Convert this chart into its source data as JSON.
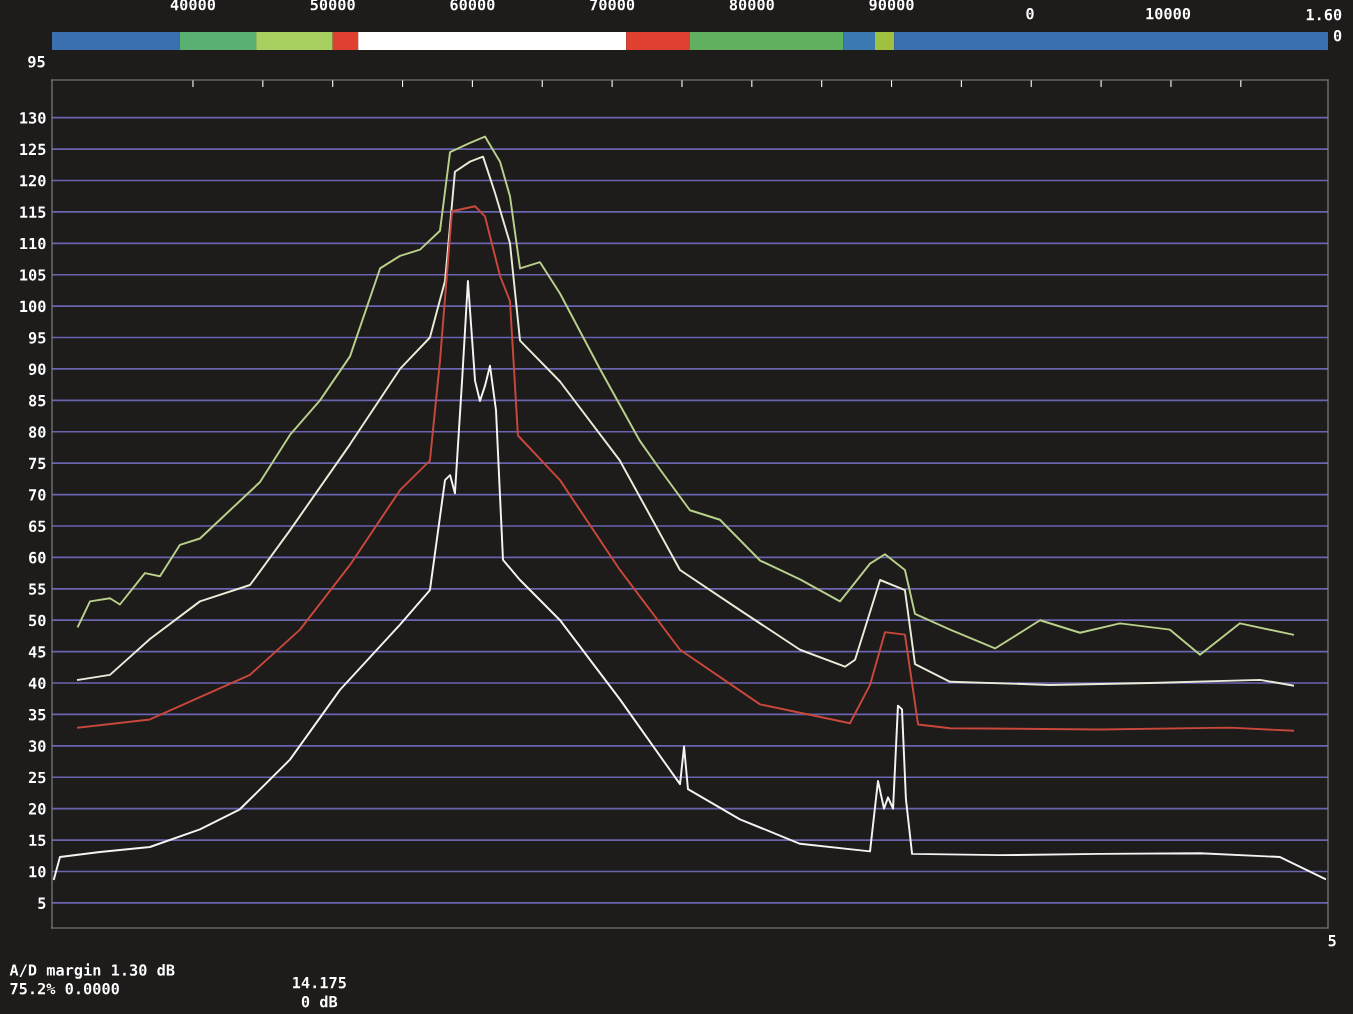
{
  "chart_data": {
    "type": "line",
    "xlim": [
      29910,
      121240
    ],
    "ylim": [
      1,
      136
    ],
    "xticks": [
      40000,
      {
        "value": 45000,
        "label": null
      },
      50000,
      {
        "value": 55000,
        "label": null
      },
      60000,
      {
        "value": 65000,
        "label": null
      },
      70000,
      {
        "value": 75000,
        "label": null
      },
      80000,
      {
        "value": 85000,
        "label": null
      },
      90000,
      {
        "value": 95000,
        "label": null
      },
      {
        "value": 100000,
        "label": null
      },
      {
        "value": 105000,
        "label": null
      },
      {
        "value": 110000,
        "label": null
      },
      {
        "value": 115000,
        "label": null
      }
    ],
    "yticks": [
      5,
      10,
      15,
      20,
      25,
      30,
      35,
      40,
      45,
      50,
      55,
      60,
      65,
      70,
      75,
      80,
      85,
      90,
      95,
      100,
      105,
      110,
      115,
      120,
      125,
      130
    ],
    "grid": "y",
    "marker": "none",
    "line_style": "solid",
    "annotations": [
      "95",
      "1.60",
      "0",
      "A/D margin 1.30 dB",
      "75.2% 0.0000",
      "14.175",
      "0 dB",
      "5",
      "0",
      "10000"
    ],
    "series": [
      {
        "color": "#b8d08a",
        "x": [
          31770,
          32630,
          34060,
          34770,
          36560,
          37640,
          39070,
          40500,
          41930,
          44800,
          46940,
          49090,
          51240,
          53390,
          54820,
          56250,
          57680,
          58400,
          59830,
          60900,
          61980,
          62690,
          63410,
          64840,
          66270,
          69130,
          72000,
          73430,
          75570,
          77720,
          80590,
          83450,
          86310,
          87030,
          88460,
          89530,
          90960,
          91680,
          94190,
          97410,
          100630,
          103490,
          106350,
          109930,
          112080,
          114940,
          118740
        ],
        "values": [
          49,
          53,
          53.5,
          52.5,
          57.5,
          57,
          62,
          63,
          66,
          72,
          79.5,
          85,
          92,
          106,
          108,
          109,
          112,
          124.5,
          126,
          127,
          123,
          117.5,
          106,
          107,
          102,
          90,
          78.5,
          74,
          67.5,
          66,
          59.5,
          56.5,
          53,
          55,
          59,
          60.5,
          58,
          51,
          48.5,
          45.5,
          50,
          48,
          49.5,
          48.5,
          44.5,
          49.5,
          47.7
        ]
      },
      {
        "color": "#e8ecd8",
        "x": [
          31770,
          34060,
          36920,
          40500,
          44080,
          46940,
          51240,
          54820,
          56960,
          58040,
          58750,
          59830,
          60760,
          61620,
          62690,
          63410,
          66270,
          70560,
          74860,
          79150,
          83450,
          86670,
          87390,
          89180,
          90960,
          91680,
          94190,
          101340,
          108500,
          116370,
          118740
        ],
        "values": [
          40.5,
          41.3,
          47,
          53,
          55.6,
          64.3,
          78,
          90,
          95,
          104,
          121.4,
          123,
          123.8,
          118,
          110,
          94.5,
          88,
          75.4,
          58,
          51.6,
          45.3,
          42.6,
          43.7,
          56.4,
          54.8,
          43,
          40.2,
          39.7,
          40,
          40.5,
          39.6
        ]
      },
      {
        "color": "#c8483c",
        "x": [
          31770,
          36920,
          44080,
          47660,
          51240,
          54820,
          56960,
          57680,
          58540,
          60190,
          60900,
          61980,
          62690,
          63260,
          66270,
          70560,
          74860,
          80590,
          87030,
          88460,
          89530,
          90960,
          91900,
          94190,
          104920,
          114230,
          118740
        ],
        "values": [
          32.9,
          34.2,
          41.3,
          48.5,
          58.8,
          70.7,
          75.4,
          91.3,
          115.1,
          115.9,
          114.3,
          104.8,
          100.8,
          79.4,
          72.3,
          58,
          45.3,
          36.6,
          33.6,
          39.7,
          48.1,
          47.7,
          33.4,
          32.8,
          32.6,
          32.9,
          32.4
        ]
      },
      {
        "color": "#f4f4f4",
        "x": [
          30050,
          30480,
          33340,
          36920,
          40500,
          43360,
          46940,
          50520,
          54820,
          56960,
          58040,
          58400,
          58750,
          59260,
          59680,
          60190,
          60540,
          60900,
          61260,
          61690,
          62190,
          63410,
          66270,
          70560,
          74860,
          75150,
          75430,
          79150,
          83450,
          88460,
          89030,
          89460,
          89750,
          90110,
          90460,
          90750,
          91030,
          91470,
          97760,
          104920,
          112080,
          117810,
          121030
        ],
        "values": [
          8.8,
          12.3,
          13.1,
          13.9,
          16.7,
          19.9,
          27.8,
          38.9,
          49.3,
          54.8,
          72.3,
          73.1,
          70.2,
          88.1,
          104,
          88.1,
          84.9,
          87.3,
          90.5,
          83.4,
          59.6,
          56.4,
          50,
          37.4,
          23.9,
          29.9,
          23.1,
          18.3,
          14.4,
          13.2,
          24.4,
          20,
          21.8,
          20,
          36.4,
          35.8,
          21.5,
          12.8,
          12.6,
          12.8,
          12.9,
          12.3,
          8.8
        ]
      }
    ]
  }
}
